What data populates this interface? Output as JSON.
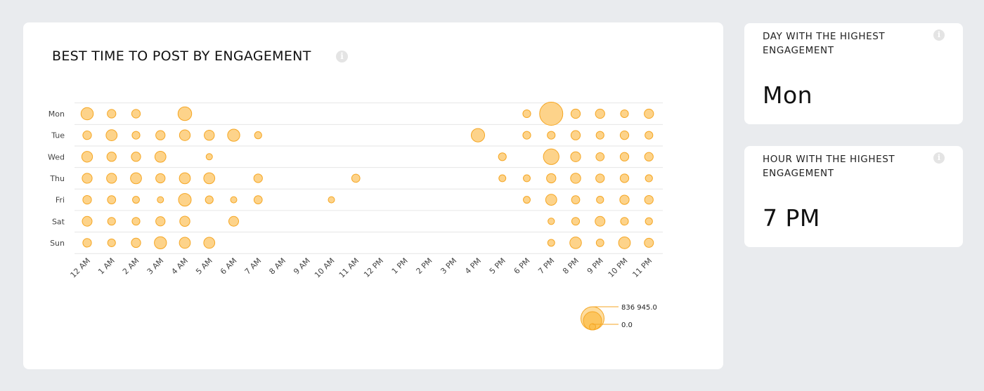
{
  "main": {
    "title": "BEST TIME TO POST BY ENGAGEMENT",
    "info_glyph": "i"
  },
  "day_card": {
    "label": "DAY WITH THE HIGHEST ENGAGEMENT",
    "value": "Mon",
    "info_glyph": "i"
  },
  "hour_card": {
    "label": "HOUR WITH THE HIGHEST ENGAGEMENT",
    "value": "7 PM",
    "info_glyph": "i"
  },
  "colors": {
    "bubble_fill": "#fdd38a",
    "bubble_stroke": "#f5a623",
    "legend_fill": "#fbbf4f",
    "grid": "#e6e6e6"
  },
  "chart_data": {
    "type": "scatter",
    "title": "BEST TIME TO POST BY ENGAGEMENT",
    "x_categories": [
      "12 AM",
      "1 AM",
      "2 AM",
      "3 AM",
      "4 AM",
      "5 AM",
      "6 AM",
      "7 AM",
      "8 AM",
      "9 AM",
      "10 AM",
      "11 AM",
      "12 PM",
      "1 PM",
      "2 PM",
      "3 PM",
      "4 PM",
      "5 PM",
      "6 PM",
      "7 PM",
      "8 PM",
      "9 PM",
      "10 PM",
      "11 PM"
    ],
    "y_categories": [
      "Mon",
      "Tue",
      "Wed",
      "Thu",
      "Fri",
      "Sat",
      "Sun"
    ],
    "size_metric": "engagement",
    "grid": true,
    "legend": {
      "placement": "bottom-right",
      "max_label": "836 945.0",
      "min_label": "0.0",
      "max_value": 836945.0,
      "min_value": 0.0
    },
    "points": [
      {
        "day": "Mon",
        "hour": "12 AM",
        "value": 235000
      },
      {
        "day": "Mon",
        "hour": "1 AM",
        "value": 115000
      },
      {
        "day": "Mon",
        "hour": "2 AM",
        "value": 115000
      },
      {
        "day": "Mon",
        "hour": "4 AM",
        "value": 290000
      },
      {
        "day": "Mon",
        "hour": "6 PM",
        "value": 95000
      },
      {
        "day": "Mon",
        "hour": "7 PM",
        "value": 836945
      },
      {
        "day": "Mon",
        "hour": "8 PM",
        "value": 135000
      },
      {
        "day": "Mon",
        "hour": "9 PM",
        "value": 135000
      },
      {
        "day": "Mon",
        "hour": "10 PM",
        "value": 95000
      },
      {
        "day": "Mon",
        "hour": "11 PM",
        "value": 135000
      },
      {
        "day": "Tue",
        "hour": "12 AM",
        "value": 115000
      },
      {
        "day": "Tue",
        "hour": "1 AM",
        "value": 190000
      },
      {
        "day": "Tue",
        "hour": "2 AM",
        "value": 95000
      },
      {
        "day": "Tue",
        "hour": "3 AM",
        "value": 135000
      },
      {
        "day": "Tue",
        "hour": "4 AM",
        "value": 180000
      },
      {
        "day": "Tue",
        "hour": "5 AM",
        "value": 160000
      },
      {
        "day": "Tue",
        "hour": "6 AM",
        "value": 230000
      },
      {
        "day": "Tue",
        "hour": "7 AM",
        "value": 80000
      },
      {
        "day": "Tue",
        "hour": "4 PM",
        "value": 280000
      },
      {
        "day": "Tue",
        "hour": "6 PM",
        "value": 95000
      },
      {
        "day": "Tue",
        "hour": "7 PM",
        "value": 95000
      },
      {
        "day": "Tue",
        "hour": "8 PM",
        "value": 135000
      },
      {
        "day": "Tue",
        "hour": "9 PM",
        "value": 95000
      },
      {
        "day": "Tue",
        "hour": "10 PM",
        "value": 115000
      },
      {
        "day": "Tue",
        "hour": "11 PM",
        "value": 95000
      },
      {
        "day": "Wed",
        "hour": "12 AM",
        "value": 180000
      },
      {
        "day": "Wed",
        "hour": "1 AM",
        "value": 135000
      },
      {
        "day": "Wed",
        "hour": "2 AM",
        "value": 135000
      },
      {
        "day": "Wed",
        "hour": "3 AM",
        "value": 190000
      },
      {
        "day": "Wed",
        "hour": "5 AM",
        "value": 60000
      },
      {
        "day": "Wed",
        "hour": "5 PM",
        "value": 95000
      },
      {
        "day": "Wed",
        "hour": "7 PM",
        "value": 380000
      },
      {
        "day": "Wed",
        "hour": "8 PM",
        "value": 155000
      },
      {
        "day": "Wed",
        "hour": "9 PM",
        "value": 105000
      },
      {
        "day": "Wed",
        "hour": "10 PM",
        "value": 115000
      },
      {
        "day": "Wed",
        "hour": "11 PM",
        "value": 115000
      },
      {
        "day": "Thu",
        "hour": "12 AM",
        "value": 155000
      },
      {
        "day": "Thu",
        "hour": "1 AM",
        "value": 155000
      },
      {
        "day": "Thu",
        "hour": "2 AM",
        "value": 190000
      },
      {
        "day": "Thu",
        "hour": "3 AM",
        "value": 135000
      },
      {
        "day": "Thu",
        "hour": "4 AM",
        "value": 190000
      },
      {
        "day": "Thu",
        "hour": "5 AM",
        "value": 190000
      },
      {
        "day": "Thu",
        "hour": "7 AM",
        "value": 115000
      },
      {
        "day": "Thu",
        "hour": "11 AM",
        "value": 105000
      },
      {
        "day": "Thu",
        "hour": "5 PM",
        "value": 75000
      },
      {
        "day": "Thu",
        "hour": "6 PM",
        "value": 75000
      },
      {
        "day": "Thu",
        "hour": "7 PM",
        "value": 135000
      },
      {
        "day": "Thu",
        "hour": "8 PM",
        "value": 160000
      },
      {
        "day": "Thu",
        "hour": "9 PM",
        "value": 115000
      },
      {
        "day": "Thu",
        "hour": "10 PM",
        "value": 115000
      },
      {
        "day": "Thu",
        "hour": "11 PM",
        "value": 80000
      },
      {
        "day": "Fri",
        "hour": "12 AM",
        "value": 115000
      },
      {
        "day": "Fri",
        "hour": "1 AM",
        "value": 105000
      },
      {
        "day": "Fri",
        "hour": "2 AM",
        "value": 75000
      },
      {
        "day": "Fri",
        "hour": "3 AM",
        "value": 55000
      },
      {
        "day": "Fri",
        "hour": "4 AM",
        "value": 250000
      },
      {
        "day": "Fri",
        "hour": "5 AM",
        "value": 95000
      },
      {
        "day": "Fri",
        "hour": "6 AM",
        "value": 55000
      },
      {
        "day": "Fri",
        "hour": "7 AM",
        "value": 105000
      },
      {
        "day": "Fri",
        "hour": "10 AM",
        "value": 55000
      },
      {
        "day": "Fri",
        "hour": "6 PM",
        "value": 75000
      },
      {
        "day": "Fri",
        "hour": "7 PM",
        "value": 190000
      },
      {
        "day": "Fri",
        "hour": "8 PM",
        "value": 105000
      },
      {
        "day": "Fri",
        "hour": "9 PM",
        "value": 80000
      },
      {
        "day": "Fri",
        "hour": "10 PM",
        "value": 135000
      },
      {
        "day": "Fri",
        "hour": "11 PM",
        "value": 115000
      },
      {
        "day": "Sat",
        "hour": "12 AM",
        "value": 150000
      },
      {
        "day": "Sat",
        "hour": "1 AM",
        "value": 95000
      },
      {
        "day": "Sat",
        "hour": "2 AM",
        "value": 95000
      },
      {
        "day": "Sat",
        "hour": "3 AM",
        "value": 135000
      },
      {
        "day": "Sat",
        "hour": "4 AM",
        "value": 160000
      },
      {
        "day": "Sat",
        "hour": "6 AM",
        "value": 150000
      },
      {
        "day": "Sat",
        "hour": "7 PM",
        "value": 65000
      },
      {
        "day": "Sat",
        "hour": "8 PM",
        "value": 95000
      },
      {
        "day": "Sat",
        "hour": "9 PM",
        "value": 150000
      },
      {
        "day": "Sat",
        "hour": "10 PM",
        "value": 95000
      },
      {
        "day": "Sat",
        "hour": "11 PM",
        "value": 80000
      },
      {
        "day": "Sun",
        "hour": "12 AM",
        "value": 115000
      },
      {
        "day": "Sun",
        "hour": "1 AM",
        "value": 95000
      },
      {
        "day": "Sun",
        "hour": "2 AM",
        "value": 135000
      },
      {
        "day": "Sun",
        "hour": "3 AM",
        "value": 230000
      },
      {
        "day": "Sun",
        "hour": "4 AM",
        "value": 190000
      },
      {
        "day": "Sun",
        "hour": "5 AM",
        "value": 190000
      },
      {
        "day": "Sun",
        "hour": "7 PM",
        "value": 75000
      },
      {
        "day": "Sun",
        "hour": "8 PM",
        "value": 210000
      },
      {
        "day": "Sun",
        "hour": "9 PM",
        "value": 90000
      },
      {
        "day": "Sun",
        "hour": "10 PM",
        "value": 215000
      },
      {
        "day": "Sun",
        "hour": "11 PM",
        "value": 130000
      }
    ]
  }
}
